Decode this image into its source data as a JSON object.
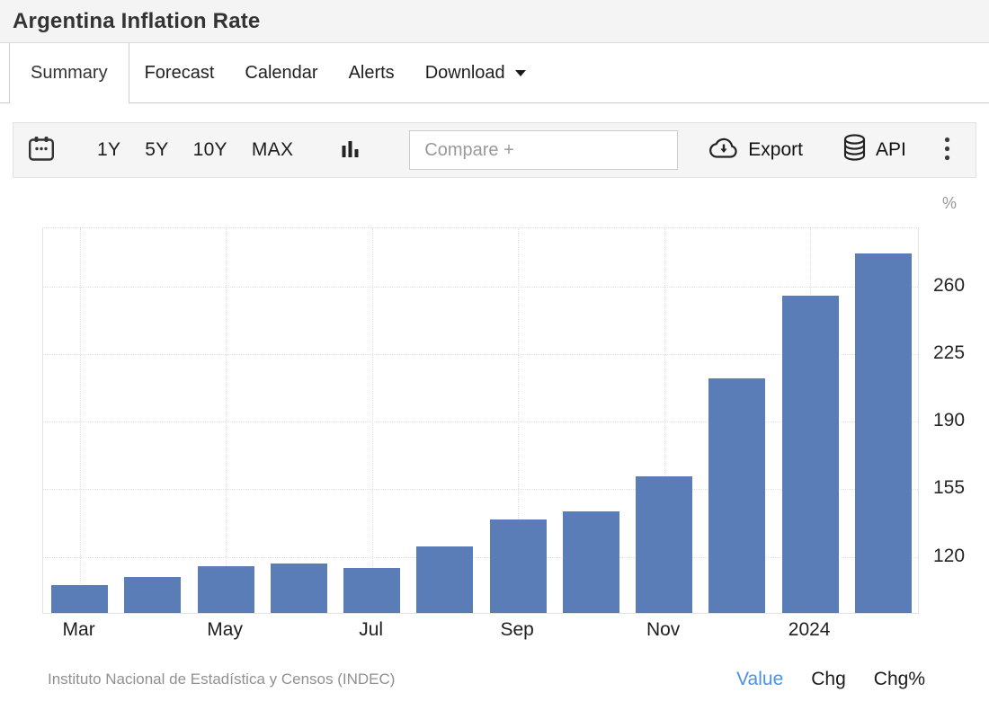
{
  "header": {
    "title": "Argentina Inflation Rate"
  },
  "tabs": [
    {
      "label": "Summary",
      "active": true
    },
    {
      "label": "Forecast",
      "active": false
    },
    {
      "label": "Calendar",
      "active": false
    },
    {
      "label": "Alerts",
      "active": false
    },
    {
      "label": "Download",
      "active": false,
      "has_caret": true
    }
  ],
  "toolbar": {
    "ranges": [
      "1Y",
      "5Y",
      "10Y",
      "MAX"
    ],
    "compare_placeholder": "Compare +",
    "export_label": "Export",
    "api_label": "API"
  },
  "chart_data": {
    "type": "bar",
    "title": "Argentina Inflation Rate",
    "unit": "%",
    "categories": [
      "Mar 2023",
      "Apr 2023",
      "May 2023",
      "Jun 2023",
      "Jul 2023",
      "Aug 2023",
      "Sep 2023",
      "Oct 2023",
      "Nov 2023",
      "Dec 2023",
      "Jan 2024",
      "Feb 2024"
    ],
    "values": [
      104.3,
      108.8,
      114.2,
      115.6,
      113.4,
      124.4,
      138.3,
      142.7,
      160.9,
      211.4,
      254.2,
      276.2
    ],
    "x_ticks": [
      {
        "label": "Mar",
        "bar_index": 0
      },
      {
        "label": "May",
        "bar_index": 2
      },
      {
        "label": "Jul",
        "bar_index": 4
      },
      {
        "label": "Sep",
        "bar_index": 6
      },
      {
        "label": "Nov",
        "bar_index": 8
      },
      {
        "label": "2024",
        "bar_index": 10
      }
    ],
    "y_ticks": [
      120,
      155,
      190,
      225,
      260
    ],
    "ylim": [
      90,
      290
    ],
    "bar_color": "#5a7db8",
    "grid": "dotted",
    "legend": "none",
    "y_axis_side": "right"
  },
  "footer": {
    "source": "Instituto Nacional de Estadística y Censos (INDEC)",
    "links": [
      {
        "label": "Value",
        "active": true
      },
      {
        "label": "Chg",
        "active": false
      },
      {
        "label": "Chg%",
        "active": false
      }
    ]
  },
  "colors": {
    "bar": "#5a7db8",
    "active_link": "#4a90f2",
    "toolbar_bg": "#f5f5f5",
    "header_bg": "#f4f4f4"
  }
}
